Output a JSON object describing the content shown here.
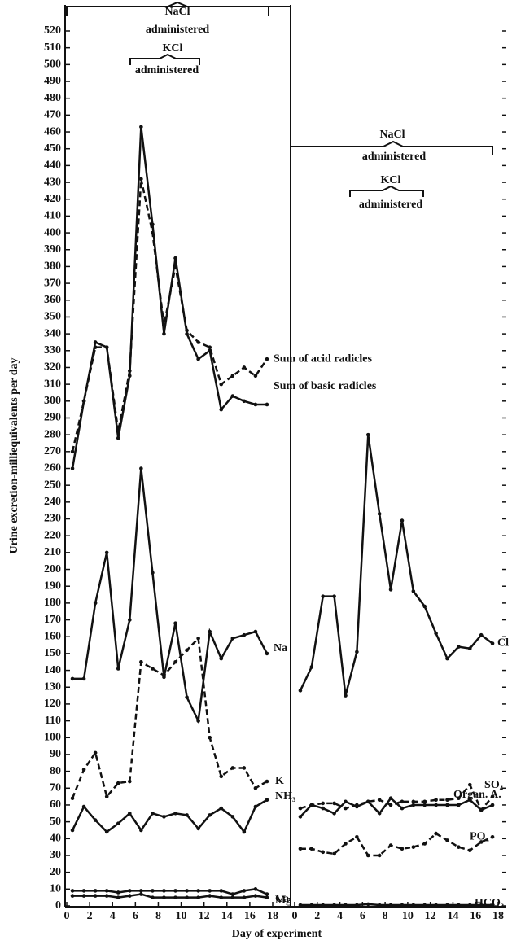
{
  "chart_data": [
    {
      "type": "line",
      "ylabel": "Urine excretion-milliequivalents per day",
      "xlabel": "Day of experiment",
      "annotations": [
        "NaCl",
        "administered",
        "KCl",
        "administered"
      ],
      "xlim": [
        0,
        18
      ],
      "xticks": [
        0,
        2,
        4,
        6,
        8,
        10,
        12,
        14,
        16,
        18
      ],
      "ylim": [
        0,
        520
      ],
      "yticks": [
        0,
        10,
        20,
        30,
        40,
        50,
        60,
        70,
        80,
        90,
        100,
        110,
        120,
        130,
        140,
        150,
        160,
        170,
        180,
        190,
        200,
        210,
        220,
        230,
        240,
        250,
        260,
        270,
        280,
        290,
        300,
        310,
        320,
        330,
        340,
        350,
        360,
        370,
        380,
        390,
        400,
        410,
        420,
        430,
        440,
        450,
        460,
        470,
        480,
        490,
        500,
        510,
        520
      ],
      "x": [
        0.5,
        1.5,
        2.5,
        3.5,
        4.5,
        5.5,
        6.5,
        7.5,
        8.5,
        9.5,
        10.5,
        11.5,
        12.5,
        13.5,
        14.5,
        15.5,
        16.5,
        17.5
      ],
      "series": [
        {
          "name": "Sum of acid radicles",
          "color": "#111",
          "dash": true,
          "values": [
            270,
            300,
            332,
            332,
            282,
            318,
            432,
            400,
            345,
            380,
            342,
            335,
            332,
            310,
            315,
            320,
            315,
            325
          ]
        },
        {
          "name": "Sum of basic radicles",
          "color": "#111",
          "dash": false,
          "values": [
            260,
            300,
            335,
            332,
            278,
            315,
            463,
            405,
            340,
            385,
            340,
            325,
            330,
            295,
            303,
            300,
            298,
            298
          ]
        },
        {
          "name": "Na",
          "color": "#111",
          "dash": false,
          "values": [
            135,
            135,
            180,
            210,
            141,
            170,
            260,
            198,
            136,
            168,
            124,
            110,
            163,
            147,
            159,
            161,
            163,
            150
          ]
        },
        {
          "name": "K",
          "color": "#111",
          "dash": true,
          "values": [
            64,
            81,
            91,
            65,
            73,
            74,
            145,
            141,
            137,
            145,
            152,
            159,
            100,
            77,
            82,
            82,
            70,
            74
          ]
        },
        {
          "name": "NH₃",
          "color": "#111",
          "dash": false,
          "values": [
            45,
            59,
            51,
            44,
            49,
            55,
            45,
            55,
            53,
            55,
            54,
            46,
            54,
            58,
            53,
            44,
            59,
            63
          ]
        },
        {
          "name": "Mg",
          "color": "#111",
          "dash": false,
          "values": [
            9,
            9,
            9,
            9,
            8,
            9,
            9,
            9,
            9,
            9,
            9,
            9,
            9,
            9,
            7,
            9,
            10,
            7
          ]
        },
        {
          "name": "Ca",
          "color": "#111",
          "dash": false,
          "values": [
            6,
            6,
            6,
            6,
            5,
            6,
            7,
            5,
            5,
            5,
            5,
            5,
            6,
            5,
            5,
            5,
            6,
            5
          ]
        }
      ]
    },
    {
      "type": "line",
      "annotations": [
        "NaCl",
        "administered",
        "KCl",
        "administered"
      ],
      "xlim": [
        0,
        18
      ],
      "xticks": [
        0,
        2,
        4,
        6,
        8,
        10,
        12,
        14,
        16,
        18
      ],
      "ylim": [
        0,
        520
      ],
      "x": [
        0.5,
        1.5,
        2.5,
        3.5,
        4.5,
        5.5,
        6.5,
        7.5,
        8.5,
        9.5,
        10.5,
        11.5,
        12.5,
        13.5,
        14.5,
        15.5,
        16.5,
        17.5
      ],
      "series": [
        {
          "name": "Cl",
          "color": "#111",
          "dash": false,
          "values": [
            128,
            142,
            184,
            184,
            125,
            151,
            280,
            233,
            188,
            229,
            187,
            178,
            162,
            147,
            154,
            153,
            161,
            156
          ]
        },
        {
          "name": "SO₄",
          "color": "#111",
          "dash": true,
          "values": [
            58,
            60,
            61,
            61,
            58,
            60,
            62,
            63,
            60,
            62,
            62,
            62,
            63,
            63,
            64,
            72,
            57,
            65
          ]
        },
        {
          "name": "Organ. A.",
          "color": "#111",
          "dash": false,
          "values": [
            53,
            60,
            58,
            55,
            62,
            59,
            62,
            55,
            64,
            58,
            60,
            60,
            60,
            60,
            60,
            63,
            57,
            60
          ]
        },
        {
          "name": "PO₄",
          "color": "#111",
          "dash": true,
          "values": [
            34,
            34,
            32,
            31,
            37,
            41,
            30,
            30,
            36,
            34,
            35,
            37,
            43,
            39,
            35,
            33,
            38,
            41
          ]
        },
        {
          "name": "HCO₃",
          "color": "#111",
          "dash": false,
          "values": [
            0.5,
            0.5,
            0.5,
            0.5,
            0.5,
            0.5,
            1,
            0.5,
            0.5,
            0.5,
            0.5,
            0.5,
            0.5,
            0.5,
            0.5,
            0.5,
            0.5,
            0.5
          ]
        }
      ]
    }
  ]
}
